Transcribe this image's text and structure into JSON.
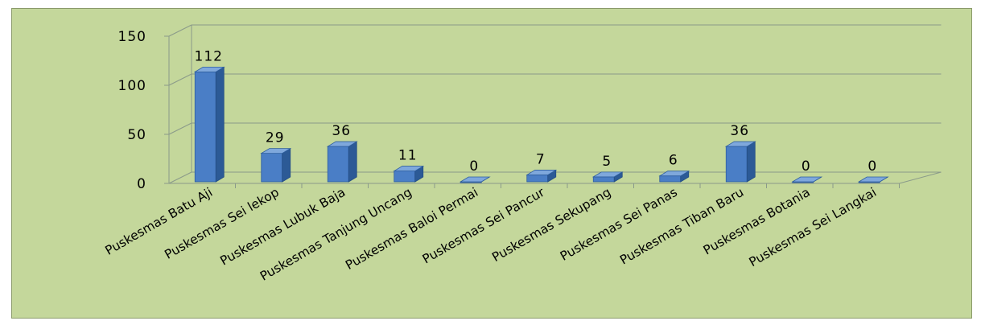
{
  "chart_data": {
    "type": "bar",
    "title": "",
    "xlabel": "",
    "ylabel": "",
    "categories": [
      "Puskesmas Batu Aji",
      "Puskesmas Sei lekop",
      "Puskesmas Lubuk Baja",
      "Puskesmas Tanjung Uncang",
      "Puskesmas Baloi Permai",
      "Puskesmas Sei Pancur",
      "Puskesmas Sekupang",
      "Puskesmas Sei Panas",
      "Puskesmas Tiban Baru",
      "Puskesmas Botania",
      "Puskesmas Sei Langkai"
    ],
    "values": [
      112,
      29,
      36,
      11,
      0,
      7,
      5,
      6,
      36,
      0,
      0
    ],
    "data_labels": [
      "112",
      "29",
      "36",
      "11",
      "0",
      "7",
      "5",
      "6",
      "36",
      "0",
      "0"
    ],
    "ylim": [
      0,
      150
    ],
    "yticks": [
      0,
      50,
      100,
      150
    ],
    "ytick_labels": [
      "0",
      "50",
      "100",
      "150"
    ],
    "grid": true,
    "legend": "none",
    "colors": {
      "background": "#c4d79b",
      "bar_front": "#4a7ec6",
      "bar_side": "#2c5a96",
      "bar_top": "#7fa8dc",
      "gridline": "#8a9a8a",
      "text": "#000000"
    }
  }
}
